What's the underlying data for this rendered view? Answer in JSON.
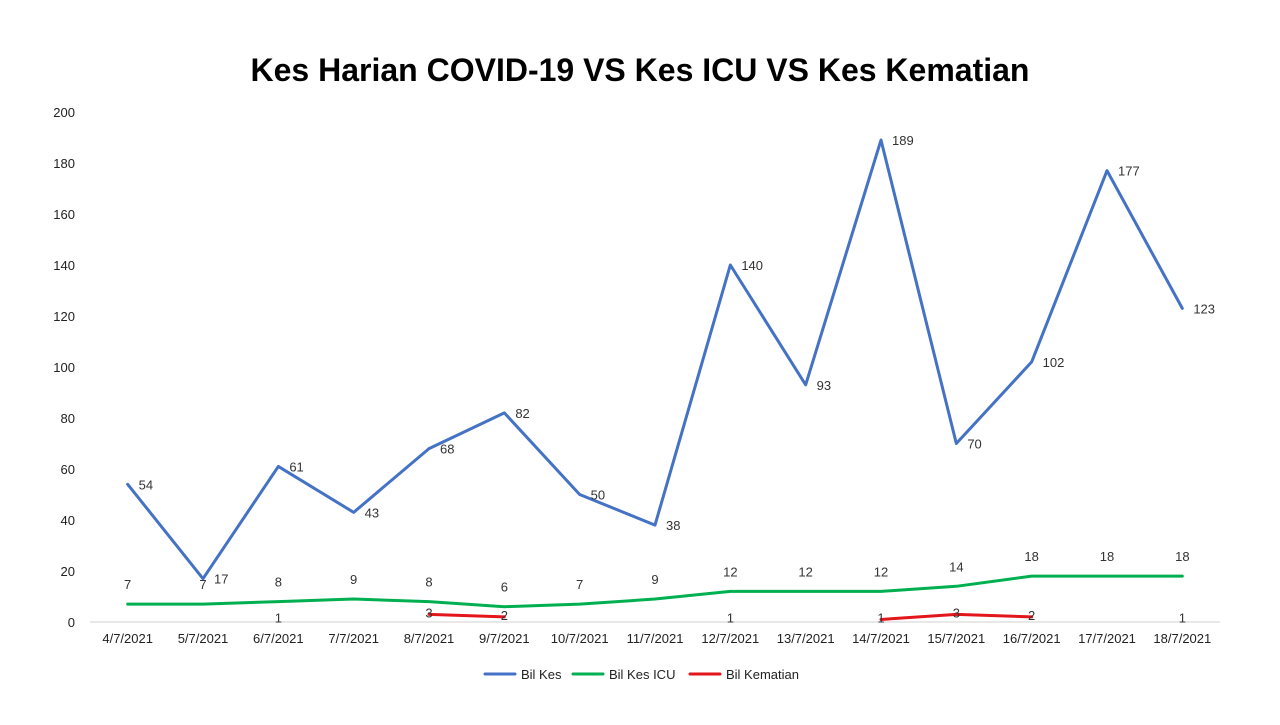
{
  "chart_data": {
    "type": "line",
    "title": "Kes Harian COVID-19 VS Kes ICU VS Kes Kematian",
    "xlabel": "",
    "ylabel": "",
    "ylim": [
      0,
      200
    ],
    "y_ticks": [
      0,
      20,
      40,
      60,
      80,
      100,
      120,
      140,
      160,
      180,
      200
    ],
    "grid": false,
    "legend_position": "bottom",
    "categories": [
      "4/7/2021",
      "5/7/2021",
      "6/7/2021",
      "7/7/2021",
      "8/7/2021",
      "9/7/2021",
      "10/7/2021",
      "11/7/2021",
      "12/7/2021",
      "13/7/2021",
      "14/7/2021",
      "15/7/2021",
      "16/7/2021",
      "17/7/2021",
      "18/7/2021"
    ],
    "series": [
      {
        "name": "Bil Kes",
        "color": "#4472C4",
        "values": [
          54,
          17,
          61,
          43,
          68,
          82,
          50,
          38,
          140,
          93,
          189,
          70,
          102,
          177,
          123
        ]
      },
      {
        "name": "Bil Kes ICU",
        "color": "#00B050",
        "values": [
          7,
          7,
          8,
          9,
          8,
          6,
          7,
          9,
          12,
          12,
          12,
          14,
          18,
          18,
          18
        ]
      },
      {
        "name": "Bil Kematian",
        "color": "#E3161B",
        "values": [
          null,
          null,
          1,
          null,
          3,
          2,
          null,
          null,
          1,
          null,
          1,
          3,
          2,
          null,
          1
        ]
      }
    ]
  }
}
